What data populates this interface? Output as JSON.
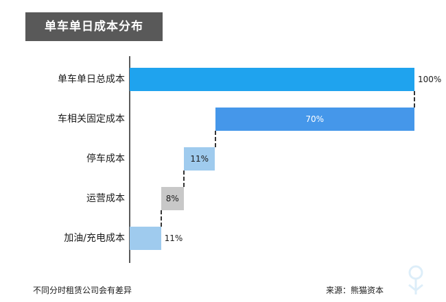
{
  "chart_data": {
    "type": "bar",
    "title": "单车单日成本分布",
    "categories": [
      "单车单日总成本",
      "车相关固定成本",
      "停车成本",
      "运营成本",
      "加油/充电成本"
    ],
    "values": [
      100,
      70,
      11,
      8,
      11
    ],
    "value_labels": [
      "100%",
      "70%",
      "11%",
      "8%",
      "11%"
    ],
    "bar_colors": [
      "#1fa3ee",
      "#4597ea",
      "#9fcbee",
      "#c8c8c8",
      "#9fcbee"
    ],
    "label_colors": [
      "#1a1a1a",
      "#ffffff",
      "#1a1a1a",
      "#1a1a1a",
      "#1a1a1a"
    ],
    "label_inside": [
      false,
      true,
      true,
      true,
      false
    ],
    "waterfall_bases": [
      0,
      30,
      19,
      11,
      0
    ],
    "xlim": [
      0,
      100
    ]
  },
  "footer": {
    "note": "不同分时租赁公司会有差异",
    "source": "来源：熊猫资本"
  }
}
